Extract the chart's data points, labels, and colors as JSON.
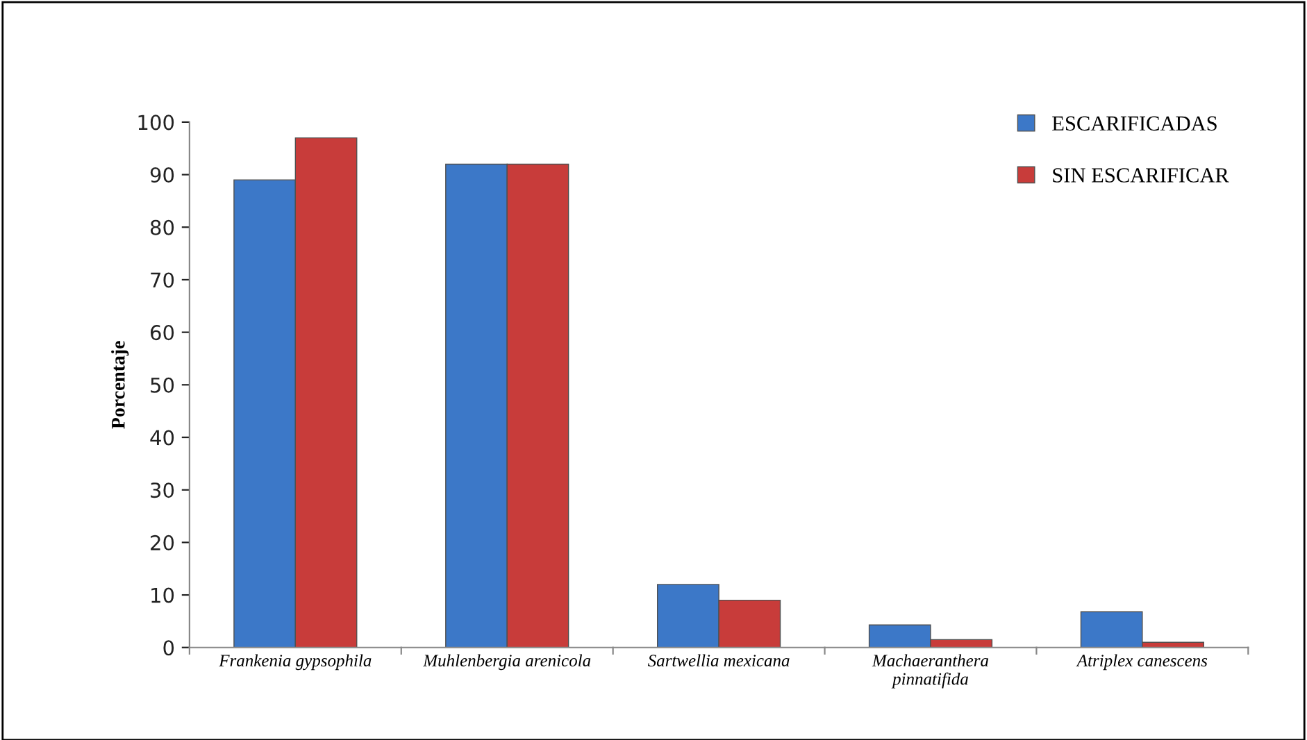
{
  "chart_data": {
    "type": "bar",
    "ylabel": "Porcentaje",
    "categories": [
      "Frankenia gypsophila",
      "Muhlenbergia arenicola",
      "Sartwellia mexicana",
      "Machaeranthera\npinnatifida",
      "Atriplex canescens"
    ],
    "series": [
      {
        "name": "ESCARIFICADAS",
        "color": "#3c78c8",
        "values": [
          89,
          92,
          12,
          4.3,
          6.8
        ]
      },
      {
        "name": "SIN ESCARIFICAR",
        "color": "#c83c3a",
        "values": [
          97,
          92,
          9,
          1.5,
          1.0
        ]
      }
    ],
    "ylim": [
      0,
      100
    ],
    "yticks": [
      0,
      10,
      20,
      30,
      40,
      50,
      60,
      70,
      80,
      90,
      100
    ],
    "grid": false,
    "legend": "top right"
  }
}
